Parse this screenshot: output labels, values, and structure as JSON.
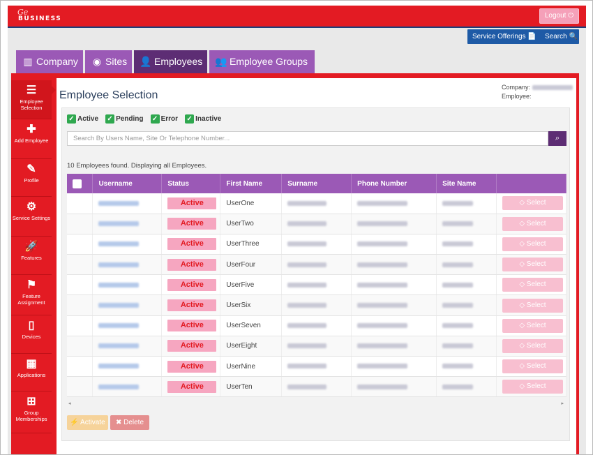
{
  "brand": {
    "swirl": "Ge",
    "name": "BUSINESS"
  },
  "header": {
    "logout_label": "Logout ⏻"
  },
  "subbar": {
    "service_offerings": "Service Offerings 📄",
    "search": "Search 🔍"
  },
  "tabs": [
    {
      "label": "Company",
      "icon": "building-icon",
      "glyph": "▥"
    },
    {
      "label": "Sites",
      "icon": "globe-icon",
      "glyph": "◉"
    },
    {
      "label": "Employees",
      "icon": "user-icon",
      "glyph": "👤"
    },
    {
      "label": "Employee Groups",
      "icon": "users-icon",
      "glyph": "👥"
    }
  ],
  "sidebar": [
    {
      "label": "Employee Selection",
      "icon": "list-icon",
      "glyph": "☰"
    },
    {
      "label": "Add Employee",
      "icon": "plus-icon",
      "glyph": "✚"
    },
    {
      "label": "Profile",
      "icon": "edit-icon",
      "glyph": "✎"
    },
    {
      "label": "Service Settings",
      "icon": "gear-icon",
      "glyph": "⚙"
    },
    {
      "label": "Features",
      "icon": "rocket-icon",
      "glyph": "🚀"
    },
    {
      "label": "Feature Assignment",
      "icon": "flag-icon",
      "glyph": "⚑"
    },
    {
      "label": "Devices",
      "icon": "tablet-icon",
      "glyph": "▯"
    },
    {
      "label": "Applications",
      "icon": "grid-icon",
      "glyph": "▦"
    },
    {
      "label": "Group Memberships",
      "icon": "sitemap-icon",
      "glyph": "⊞"
    }
  ],
  "main": {
    "title": "Employee Selection",
    "company_label": "Company:",
    "employee_label": "Employee:",
    "filters": [
      "Active",
      "Pending",
      "Error",
      "Inactive"
    ],
    "search_placeholder": "Search By Users Name, Site Or Telephone Number...",
    "count_text": "10 Employees found. Displaying all Employees.",
    "columns": [
      "",
      "Username",
      "Status",
      "First Name",
      "Surname",
      "Phone Number",
      "Site Name",
      ""
    ],
    "rows": [
      {
        "status": "Active",
        "first_name": "UserOne",
        "select": "◇ Select"
      },
      {
        "status": "Active",
        "first_name": "UserTwo",
        "select": "◇ Select"
      },
      {
        "status": "Active",
        "first_name": "UserThree",
        "select": "◇ Select"
      },
      {
        "status": "Active",
        "first_name": "UserFour",
        "select": "◇ Select"
      },
      {
        "status": "Active",
        "first_name": "UserFive",
        "select": "◇ Select"
      },
      {
        "status": "Active",
        "first_name": "UserSix",
        "select": "◇ Select"
      },
      {
        "status": "Active",
        "first_name": "UserSeven",
        "select": "◇ Select"
      },
      {
        "status": "Active",
        "first_name": "UserEight",
        "select": "◇ Select"
      },
      {
        "status": "Active",
        "first_name": "UserNine",
        "select": "◇ Select"
      },
      {
        "status": "Active",
        "first_name": "UserTen",
        "select": "◇ Select"
      }
    ],
    "activate_label": "⚡ Activate",
    "delete_label": "✖ Delete"
  },
  "colors": {
    "brand_red": "#e31b23",
    "purple": "#9b59b6",
    "purple_dark": "#5d2d74",
    "blue": "#1e5aa6",
    "status_pink": "#f6a6c0"
  }
}
